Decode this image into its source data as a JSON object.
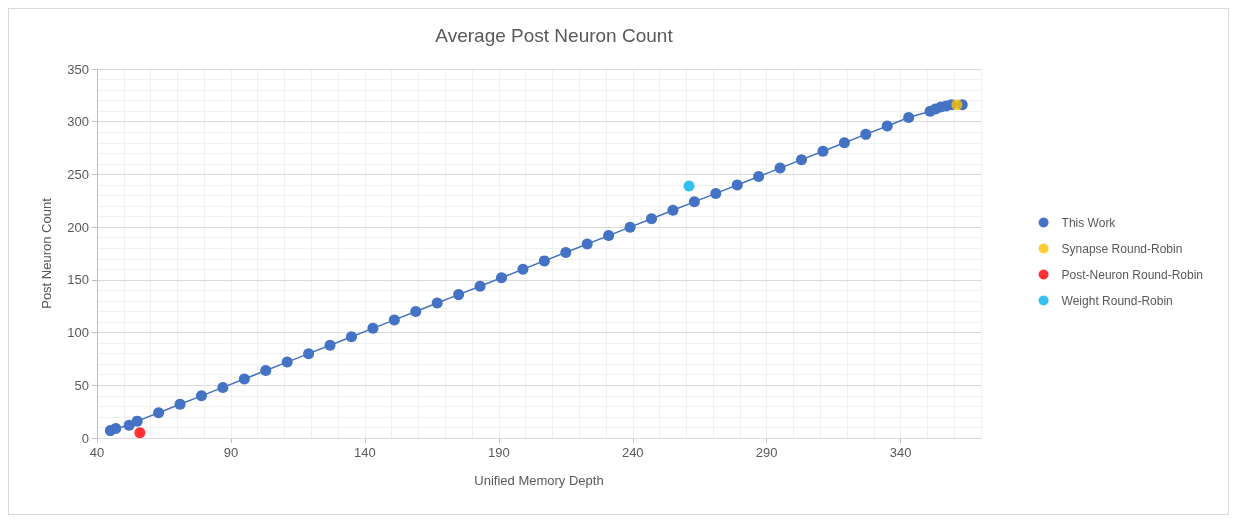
{
  "chart_data": {
    "type": "line",
    "title": "Average Post Neuron Count",
    "xlabel": "Unified Memory Depth",
    "ylabel": "Post Neuron Count",
    "xlim": [
      40,
      370
    ],
    "xticks": [
      40,
      90,
      140,
      190,
      240,
      290,
      340
    ],
    "ylim": [
      0,
      350
    ],
    "yticks": [
      0,
      50,
      100,
      150,
      200,
      250,
      300,
      350
    ],
    "grid": true,
    "legend": "right",
    "marker": "circle",
    "line_style": "solid",
    "series": [
      {
        "name": "This Work",
        "color": "#4472c4",
        "x": [
          45,
          47,
          52,
          55,
          63,
          71,
          79,
          87,
          95,
          103,
          111,
          119,
          127,
          135,
          143,
          151,
          159,
          167,
          175,
          183,
          191,
          199,
          207,
          215,
          223,
          231,
          239,
          247,
          255,
          263,
          271,
          279,
          287,
          295,
          303,
          311,
          319,
          327,
          335,
          343,
          351,
          353,
          355,
          357,
          359,
          363
        ],
        "values": [
          7,
          9,
          12,
          16,
          24,
          32,
          40,
          48,
          56,
          64,
          72,
          80,
          88,
          96,
          104,
          112,
          120,
          128,
          136,
          144,
          152,
          160,
          168,
          176,
          184,
          192,
          200,
          208,
          216,
          224,
          232,
          240,
          248,
          256,
          264,
          272,
          280,
          288,
          296,
          304,
          310,
          312,
          314,
          315,
          316,
          316
        ]
      },
      {
        "name": "Synapse Round-Robin",
        "type": "scatter",
        "color": "#ffc000",
        "x": [
          361
        ],
        "values": [
          316
        ]
      },
      {
        "name": "Post-Neuron Round-Robin",
        "type": "scatter",
        "color": "#ff0000",
        "x": [
          56
        ],
        "values": [
          5
        ]
      },
      {
        "name": "Weight Round-Robin",
        "type": "scatter",
        "color": "#00b0f0",
        "x": [
          261
        ],
        "values": [
          239
        ]
      }
    ]
  }
}
